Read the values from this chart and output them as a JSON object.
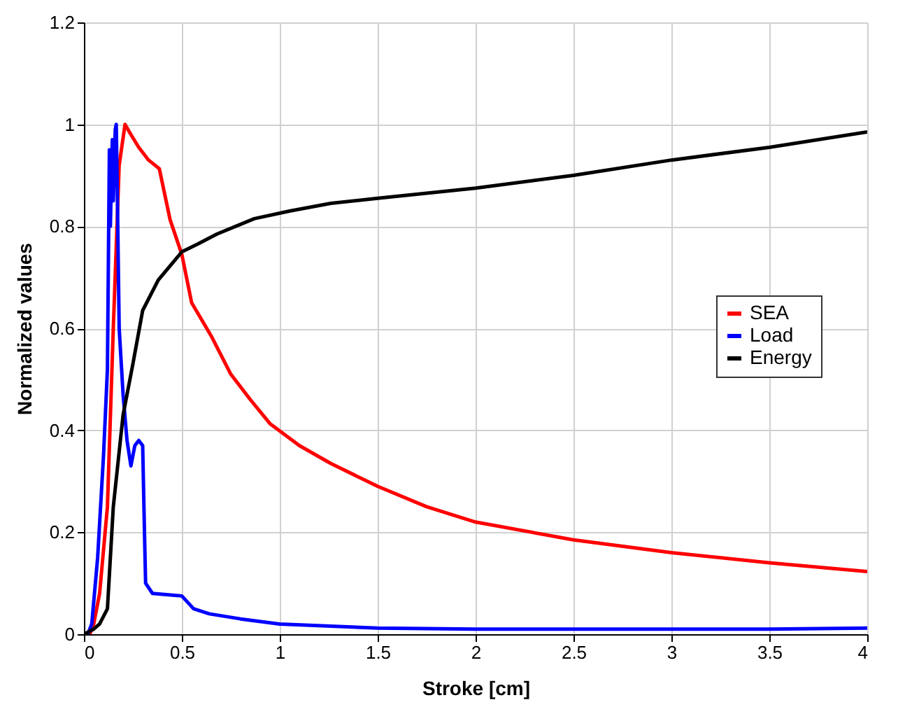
{
  "chart_data": {
    "type": "line",
    "xlabel": "Stroke [cm]",
    "ylabel": "Normalized values",
    "xlim": [
      0,
      4
    ],
    "xticks": [
      0,
      0.5,
      1,
      1.5,
      2,
      2.5,
      3,
      3.5,
      4
    ],
    "ylim": [
      0,
      1.2
    ],
    "yticks": [
      0,
      0.2,
      0.4,
      0.6,
      0.8,
      1,
      1.2
    ],
    "grid": true,
    "legend": "right",
    "series": [
      {
        "name": "SEA",
        "color": "#ff0000",
        "x": [
          0,
          0.03,
          0.05,
          0.08,
          0.12,
          0.15,
          0.18,
          0.21,
          0.24,
          0.28,
          0.33,
          0.385,
          0.44,
          0.5,
          0.55,
          0.65,
          0.75,
          0.85,
          0.95,
          1.1,
          1.26,
          1.5,
          1.75,
          2,
          2.5,
          3,
          3.5,
          4
        ],
        "values": [
          0,
          0,
          0.02,
          0.08,
          0.25,
          0.6,
          0.92,
          1.0,
          0.98,
          0.955,
          0.93,
          0.913,
          0.813,
          0.745,
          0.65,
          0.585,
          0.51,
          0.46,
          0.413,
          0.37,
          0.335,
          0.29,
          0.25,
          0.22,
          0.185,
          0.16,
          0.14,
          0.123
        ]
      },
      {
        "name": "Load",
        "color": "#0000ff",
        "x": [
          0,
          0.02,
          0.04,
          0.07,
          0.1,
          0.12,
          0.13,
          0.135,
          0.145,
          0.15,
          0.16,
          0.165,
          0.17,
          0.18,
          0.2,
          0.22,
          0.24,
          0.26,
          0.28,
          0.3,
          0.31,
          0.315,
          0.35,
          0.5,
          0.56,
          0.64,
          0.8,
          1,
          1.5,
          2,
          2.5,
          3,
          3.5,
          4
        ],
        "values": [
          0,
          0,
          0.02,
          0.15,
          0.35,
          0.52,
          0.95,
          0.8,
          0.97,
          0.85,
          0.99,
          1.0,
          0.88,
          0.6,
          0.47,
          0.38,
          0.33,
          0.37,
          0.38,
          0.37,
          0.185,
          0.1,
          0.08,
          0.075,
          0.05,
          0.04,
          0.03,
          0.02,
          0.012,
          0.01,
          0.01,
          0.01,
          0.01,
          0.012
        ]
      },
      {
        "name": "Energy",
        "color": "#000000",
        "x": [
          0,
          0.05,
          0.08,
          0.12,
          0.15,
          0.2,
          0.25,
          0.3,
          0.38,
          0.5,
          0.58,
          0.68,
          0.87,
          1.05,
          1.26,
          1.5,
          2,
          2.5,
          3,
          3.5,
          4
        ],
        "values": [
          0,
          0.01,
          0.02,
          0.05,
          0.25,
          0.43,
          0.53,
          0.635,
          0.695,
          0.75,
          0.765,
          0.785,
          0.815,
          0.83,
          0.845,
          0.855,
          0.875,
          0.9,
          0.93,
          0.955,
          0.985
        ]
      }
    ]
  }
}
